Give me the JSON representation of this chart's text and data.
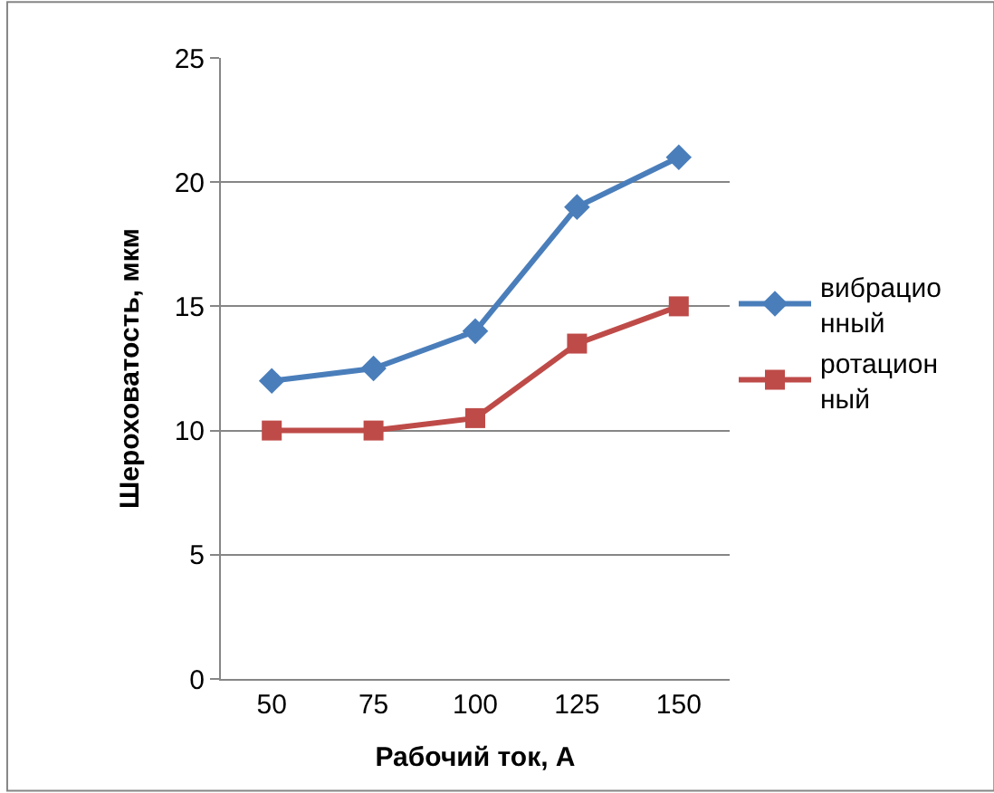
{
  "chart_data": {
    "type": "line",
    "xlabel": "Рабочий ток, А",
    "ylabel": "Шероховатость, мкм",
    "categories": [
      "50",
      "75",
      "100",
      "125",
      "150"
    ],
    "series": [
      {
        "name": "вибрационный",
        "color": "#4a7ebb",
        "marker": "diamond",
        "values": [
          12,
          12.5,
          14,
          19,
          21
        ]
      },
      {
        "name": "ротационный",
        "color": "#be4b48",
        "marker": "square",
        "values": [
          10,
          10,
          10.5,
          13.5,
          15
        ]
      }
    ],
    "ylim": [
      0,
      25
    ],
    "yticks": [
      0,
      5,
      10,
      15,
      20,
      25
    ],
    "grid": "y",
    "legend": "right",
    "line_style": "solid"
  }
}
